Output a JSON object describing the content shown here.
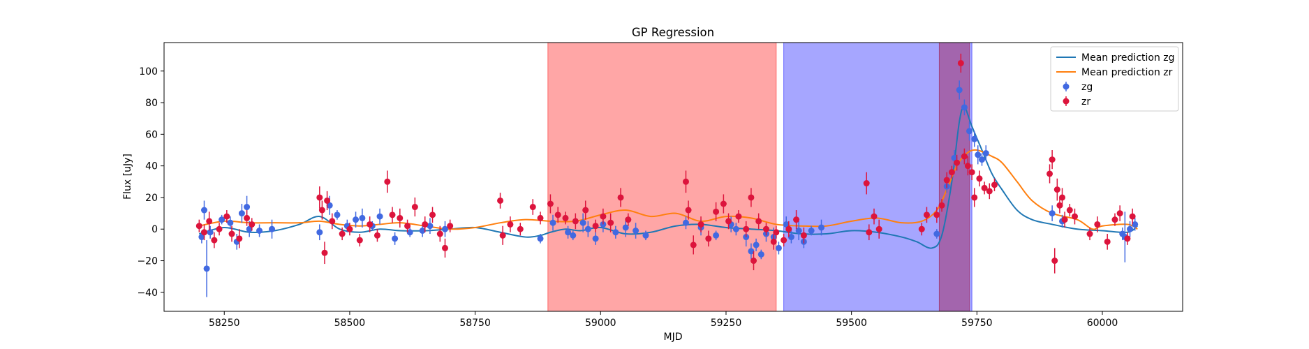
{
  "chart_data": {
    "type": "line",
    "title": "GP Regression",
    "xlabel": "MJD",
    "ylabel": "Flux [uJy]",
    "xlim": [
      58130,
      60160
    ],
    "ylim": [
      -52,
      118
    ],
    "xticks": [
      58250,
      58500,
      58750,
      59000,
      59250,
      59500,
      59750,
      60000
    ],
    "yticks": [
      -40,
      -20,
      0,
      20,
      40,
      60,
      80,
      100
    ],
    "shaded_regions": [
      {
        "x0": 58895,
        "x1": 59350,
        "color": "#ff4d4d",
        "opacity": 0.5,
        "name": "red-span"
      },
      {
        "x0": 59365,
        "x1": 59740,
        "color": "#4d4dff",
        "opacity": 0.5,
        "name": "blue-span"
      },
      {
        "x0": 59675,
        "x1": 59735,
        "color": "#a0306a",
        "opacity": 0.55,
        "name": "overlap-span"
      }
    ],
    "legend": {
      "position": "top-right",
      "entries": [
        {
          "label": "Mean prediction zg",
          "kind": "line",
          "color": "#1f77b4"
        },
        {
          "label": "Mean prediction zr",
          "kind": "line",
          "color": "#ff7f0e"
        },
        {
          "label": "zg",
          "kind": "marker",
          "color": "#4169e1"
        },
        {
          "label": "zr",
          "kind": "marker",
          "color": "#dc143c"
        }
      ]
    },
    "series_lines": [
      {
        "name": "Mean prediction zg",
        "color": "#1f77b4",
        "x": [
          58200,
          58250,
          58300,
          58350,
          58400,
          58440,
          58480,
          58520,
          58560,
          58600,
          58650,
          58700,
          58750,
          58800,
          58850,
          58880,
          58900,
          58930,
          58960,
          59000,
          59050,
          59100,
          59150,
          59200,
          59250,
          59300,
          59350,
          59400,
          59450,
          59500,
          59550,
          59600,
          59630,
          59660,
          59680,
          59700,
          59715,
          59725,
          59740,
          59760,
          59780,
          59800,
          59830,
          59860,
          59900,
          59950,
          60000,
          60050,
          60070
        ],
        "y": [
          -3,
          1,
          -2,
          -1,
          3,
          8,
          0,
          -2,
          0,
          -1,
          -1,
          0,
          1,
          -2,
          -5,
          -4,
          -2,
          0,
          -1,
          1,
          -3,
          -2,
          2,
          3,
          1,
          0,
          -1,
          -3,
          -3,
          -1,
          -2,
          -5,
          -8,
          -12,
          -4,
          30,
          68,
          77,
          65,
          50,
          35,
          25,
          12,
          6,
          3,
          0,
          -1,
          -2,
          2
        ]
      },
      {
        "name": "Mean prediction zr",
        "color": "#ff7f0e",
        "x": [
          58200,
          58250,
          58300,
          58350,
          58400,
          58440,
          58480,
          58520,
          58560,
          58600,
          58650,
          58700,
          58750,
          58800,
          58850,
          58900,
          58950,
          59000,
          59050,
          59100,
          59150,
          59200,
          59250,
          59300,
          59350,
          59400,
          59450,
          59500,
          59550,
          59600,
          59640,
          59670,
          59690,
          59710,
          59730,
          59750,
          59780,
          59800,
          59830,
          59860,
          59900,
          59950,
          59980,
          60000,
          60050,
          60070
        ],
        "y": [
          2,
          5,
          4,
          4,
          4,
          5,
          3,
          2,
          3,
          4,
          2,
          0,
          1,
          4,
          6,
          5,
          5,
          9,
          12,
          8,
          10,
          5,
          8,
          7,
          3,
          2,
          2,
          5,
          7,
          4,
          5,
          12,
          25,
          40,
          48,
          50,
          46,
          42,
          30,
          18,
          10,
          6,
          0,
          2,
          3,
          0
        ]
      }
    ],
    "series_points": [
      {
        "name": "zg",
        "color": "#4169e1",
        "points": [
          [
            58205,
            -5,
            4
          ],
          [
            58210,
            12,
            6
          ],
          [
            58215,
            -25,
            18
          ],
          [
            58222,
            -2,
            4
          ],
          [
            58245,
            6,
            3
          ],
          [
            58262,
            4,
            4
          ],
          [
            58275,
            -8,
            5
          ],
          [
            58285,
            10,
            6
          ],
          [
            58295,
            14,
            7
          ],
          [
            58300,
            0,
            5
          ],
          [
            58320,
            -1,
            4
          ],
          [
            58345,
            0,
            6
          ],
          [
            58440,
            -2,
            5
          ],
          [
            58460,
            15,
            6
          ],
          [
            58475,
            9,
            3
          ],
          [
            58495,
            2,
            4
          ],
          [
            58512,
            6,
            5
          ],
          [
            58525,
            7,
            6
          ],
          [
            58545,
            2,
            3
          ],
          [
            58560,
            8,
            5
          ],
          [
            58590,
            -6,
            4
          ],
          [
            58620,
            -2,
            3
          ],
          [
            58645,
            -1,
            4
          ],
          [
            58660,
            2,
            5
          ],
          [
            58690,
            0,
            5
          ],
          [
            58880,
            -6,
            3
          ],
          [
            58905,
            4,
            5
          ],
          [
            58935,
            -2,
            4
          ],
          [
            58945,
            -4,
            3
          ],
          [
            58965,
            4,
            6
          ],
          [
            58975,
            0,
            5
          ],
          [
            58990,
            -6,
            4
          ],
          [
            59005,
            3,
            5
          ],
          [
            59030,
            -2,
            4
          ],
          [
            59050,
            1,
            6
          ],
          [
            59070,
            -1,
            5
          ],
          [
            59090,
            -4,
            3
          ],
          [
            59170,
            4,
            4
          ],
          [
            59200,
            1,
            5
          ],
          [
            59230,
            -4,
            3
          ],
          [
            59260,
            3,
            5
          ],
          [
            59270,
            0,
            4
          ],
          [
            59290,
            -5,
            6
          ],
          [
            59300,
            -14,
            5
          ],
          [
            59310,
            -10,
            4
          ],
          [
            59320,
            -16,
            3
          ],
          [
            59330,
            -3,
            5
          ],
          [
            59345,
            -5,
            6
          ],
          [
            59355,
            -12,
            4
          ],
          [
            59370,
            3,
            5
          ],
          [
            59380,
            -5,
            4
          ],
          [
            59395,
            -1,
            6
          ],
          [
            59405,
            -8,
            4
          ],
          [
            59420,
            -1,
            3
          ],
          [
            59440,
            1,
            5
          ],
          [
            59670,
            -3,
            3
          ],
          [
            59690,
            27,
            4
          ],
          [
            59705,
            45,
            5
          ],
          [
            59715,
            88,
            6
          ],
          [
            59725,
            77,
            5
          ],
          [
            59735,
            62,
            6
          ],
          [
            59745,
            57,
            5
          ],
          [
            59752,
            47,
            6
          ],
          [
            59760,
            44,
            4
          ],
          [
            59768,
            48,
            5
          ],
          [
            59900,
            10,
            5
          ],
          [
            59920,
            5,
            4
          ],
          [
            60040,
            -3,
            4
          ],
          [
            60045,
            -5,
            16
          ],
          [
            60055,
            0,
            5
          ],
          [
            60065,
            3,
            4
          ]
        ]
      },
      {
        "name": "zr",
        "color": "#dc143c",
        "points": [
          [
            58200,
            2,
            4
          ],
          [
            58210,
            -2,
            5
          ],
          [
            58220,
            5,
            6
          ],
          [
            58230,
            -7,
            5
          ],
          [
            58240,
            0,
            4
          ],
          [
            58255,
            8,
            4
          ],
          [
            58265,
            -3,
            5
          ],
          [
            58280,
            -6,
            6
          ],
          [
            58295,
            7,
            5
          ],
          [
            58305,
            3,
            4
          ],
          [
            58440,
            20,
            7
          ],
          [
            58445,
            12,
            6
          ],
          [
            58450,
            -15,
            7
          ],
          [
            58455,
            18,
            6
          ],
          [
            58465,
            5,
            5
          ],
          [
            58485,
            -3,
            4
          ],
          [
            58500,
            0,
            4
          ],
          [
            58520,
            -7,
            4
          ],
          [
            58540,
            3,
            5
          ],
          [
            58555,
            -4,
            4
          ],
          [
            58575,
            30,
            7
          ],
          [
            58585,
            9,
            5
          ],
          [
            58600,
            7,
            6
          ],
          [
            58615,
            2,
            4
          ],
          [
            58630,
            14,
            6
          ],
          [
            58650,
            3,
            5
          ],
          [
            58665,
            9,
            5
          ],
          [
            58680,
            -3,
            5
          ],
          [
            58690,
            -12,
            6
          ],
          [
            58700,
            2,
            4
          ],
          [
            58800,
            18,
            5
          ],
          [
            58805,
            -4,
            6
          ],
          [
            58820,
            3,
            5
          ],
          [
            58840,
            0,
            4
          ],
          [
            58865,
            14,
            5
          ],
          [
            58880,
            7,
            4
          ],
          [
            58900,
            16,
            6
          ],
          [
            58915,
            9,
            5
          ],
          [
            58930,
            7,
            4
          ],
          [
            58950,
            5,
            5
          ],
          [
            58970,
            12,
            6
          ],
          [
            58990,
            2,
            4
          ],
          [
            59005,
            8,
            5
          ],
          [
            59020,
            4,
            6
          ],
          [
            59040,
            20,
            6
          ],
          [
            59055,
            6,
            4
          ],
          [
            59170,
            30,
            7
          ],
          [
            59175,
            12,
            6
          ],
          [
            59185,
            -10,
            6
          ],
          [
            59200,
            3,
            5
          ],
          [
            59215,
            -6,
            5
          ],
          [
            59230,
            11,
            6
          ],
          [
            59245,
            16,
            6
          ],
          [
            59255,
            5,
            5
          ],
          [
            59275,
            8,
            4
          ],
          [
            59290,
            0,
            5
          ],
          [
            59300,
            20,
            6
          ],
          [
            59305,
            -20,
            6
          ],
          [
            59315,
            5,
            5
          ],
          [
            59330,
            0,
            4
          ],
          [
            59345,
            -8,
            5
          ],
          [
            59350,
            -2,
            4
          ],
          [
            59365,
            -7,
            4
          ],
          [
            59375,
            0,
            5
          ],
          [
            59390,
            6,
            6
          ],
          [
            59405,
            -4,
            5
          ],
          [
            59530,
            29,
            7
          ],
          [
            59535,
            -2,
            5
          ],
          [
            59545,
            8,
            5
          ],
          [
            59555,
            0,
            6
          ],
          [
            59640,
            0,
            4
          ],
          [
            59650,
            9,
            5
          ],
          [
            59670,
            9,
            5
          ],
          [
            59680,
            15,
            4
          ],
          [
            59690,
            31,
            5
          ],
          [
            59700,
            36,
            4
          ],
          [
            59710,
            42,
            5
          ],
          [
            59718,
            105,
            6
          ],
          [
            59725,
            46,
            5
          ],
          [
            59732,
            40,
            6
          ],
          [
            59740,
            36,
            5
          ],
          [
            59745,
            20,
            6
          ],
          [
            59755,
            32,
            5
          ],
          [
            59765,
            26,
            4
          ],
          [
            59775,
            24,
            5
          ],
          [
            59785,
            28,
            4
          ],
          [
            59895,
            35,
            6
          ],
          [
            59900,
            44,
            6
          ],
          [
            59905,
            -20,
            8
          ],
          [
            59910,
            25,
            7
          ],
          [
            59915,
            15,
            5
          ],
          [
            59920,
            20,
            6
          ],
          [
            59925,
            6,
            5
          ],
          [
            59935,
            12,
            4
          ],
          [
            59945,
            8,
            5
          ],
          [
            59975,
            -3,
            4
          ],
          [
            59990,
            3,
            5
          ],
          [
            60010,
            -8,
            5
          ],
          [
            60025,
            6,
            4
          ],
          [
            60035,
            10,
            5
          ],
          [
            60050,
            -6,
            4
          ],
          [
            60060,
            8,
            5
          ]
        ]
      }
    ]
  }
}
